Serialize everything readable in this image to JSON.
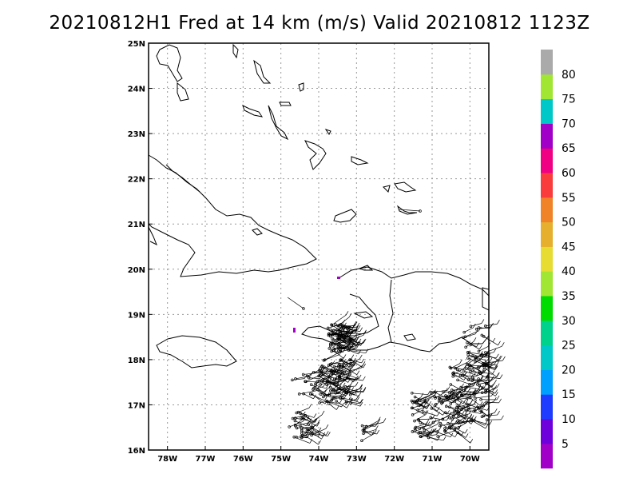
{
  "title": "20210812H1 Fred at 14 km (m/s) Valid 20210812 1123Z",
  "map": {
    "lon_range": [
      -78.5,
      -69.5
    ],
    "lat_range": [
      16,
      25
    ],
    "grid": true,
    "lon_ticks": [
      {
        "value": -78,
        "label": "78W"
      },
      {
        "value": -77,
        "label": "77W"
      },
      {
        "value": -76,
        "label": "76W"
      },
      {
        "value": -75,
        "label": "75W"
      },
      {
        "value": -74,
        "label": "74W"
      },
      {
        "value": -73,
        "label": "73W"
      },
      {
        "value": -72,
        "label": "72W"
      },
      {
        "value": -71,
        "label": "71W"
      },
      {
        "value": -70,
        "label": "70W"
      }
    ],
    "lat_ticks": [
      {
        "value": 16,
        "label": "16N"
      },
      {
        "value": 17,
        "label": "17N"
      },
      {
        "value": 18,
        "label": "18N"
      },
      {
        "value": 19,
        "label": "19N"
      },
      {
        "value": 20,
        "label": "20N"
      },
      {
        "value": 21,
        "label": "21N"
      },
      {
        "value": 22,
        "label": "22N"
      },
      {
        "value": 23,
        "label": "23N"
      },
      {
        "value": 24,
        "label": "24N"
      },
      {
        "value": 25,
        "label": "25N"
      }
    ]
  },
  "colorbar": {
    "labels": [
      "5",
      "10",
      "15",
      "20",
      "25",
      "30",
      "35",
      "40",
      "45",
      "50",
      "55",
      "60",
      "65",
      "70",
      "75",
      "80"
    ],
    "colors": [
      "#a000c8",
      "#6e00dc",
      "#1e3cff",
      "#00a0ff",
      "#00c8c8",
      "#00d28c",
      "#00dc00",
      "#a0e632",
      "#e6dc32",
      "#e6af2d",
      "#f08228",
      "#fa3c3c",
      "#f00082",
      "#a000c8",
      "#00c8c8",
      "#a0e632",
      "#aaaaaa"
    ]
  }
}
